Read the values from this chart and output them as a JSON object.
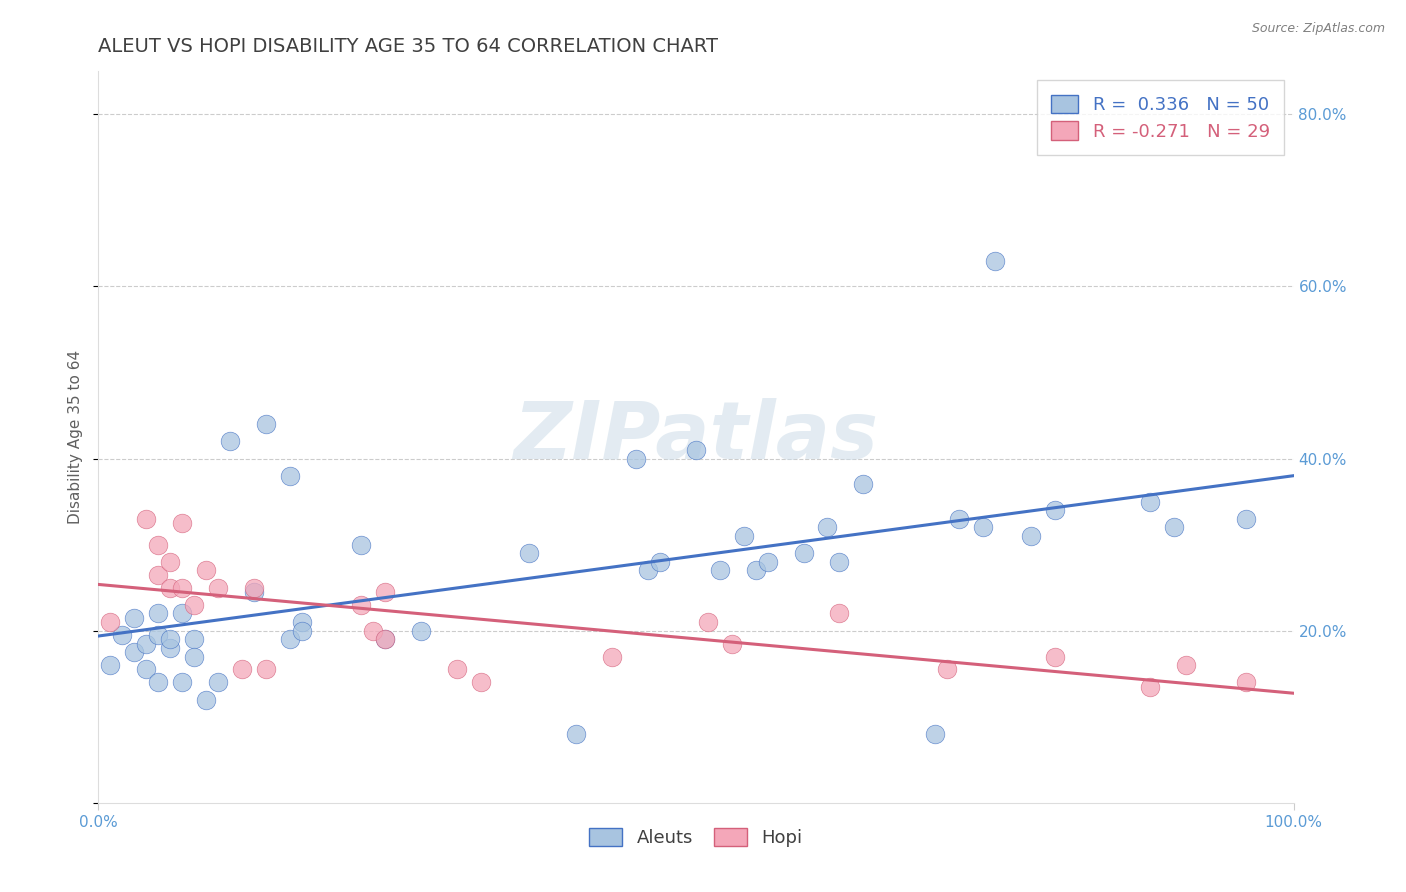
{
  "title": "ALEUT VS HOPI DISABILITY AGE 35 TO 64 CORRELATION CHART",
  "source": "Source: ZipAtlas.com",
  "ylabel": "Disability Age 35 to 64",
  "xlim": [
    0,
    1
  ],
  "ylim": [
    0,
    0.85
  ],
  "x_ticks": [
    0.0,
    1.0
  ],
  "x_tick_labels": [
    "0.0%",
    "100.0%"
  ],
  "y_ticks": [
    0.0,
    0.2,
    0.4,
    0.6,
    0.8
  ],
  "y_tick_labels_right": [
    "",
    "20.0%",
    "40.0%",
    "60.0%",
    "80.0%"
  ],
  "aleuts_R": 0.336,
  "aleuts_N": 50,
  "hopi_R": -0.271,
  "hopi_N": 29,
  "aleuts_color": "#a8c4e0",
  "aleuts_line_color": "#4472c4",
  "hopi_color": "#f4a7b9",
  "hopi_line_color": "#d4607a",
  "background_color": "#ffffff",
  "watermark_text": "ZIPatlas",
  "aleuts_x": [
    0.01,
    0.02,
    0.03,
    0.03,
    0.04,
    0.04,
    0.05,
    0.05,
    0.05,
    0.06,
    0.06,
    0.07,
    0.07,
    0.08,
    0.08,
    0.09,
    0.1,
    0.11,
    0.13,
    0.14,
    0.16,
    0.16,
    0.17,
    0.17,
    0.22,
    0.24,
    0.27,
    0.36,
    0.4,
    0.45,
    0.46,
    0.47,
    0.5,
    0.52,
    0.54,
    0.55,
    0.56,
    0.59,
    0.61,
    0.62,
    0.64,
    0.7,
    0.72,
    0.74,
    0.75,
    0.78,
    0.8,
    0.88,
    0.9,
    0.96
  ],
  "aleuts_y": [
    0.16,
    0.195,
    0.175,
    0.215,
    0.185,
    0.155,
    0.195,
    0.22,
    0.14,
    0.18,
    0.19,
    0.14,
    0.22,
    0.19,
    0.17,
    0.12,
    0.14,
    0.42,
    0.245,
    0.44,
    0.19,
    0.38,
    0.21,
    0.2,
    0.3,
    0.19,
    0.2,
    0.29,
    0.08,
    0.4,
    0.27,
    0.28,
    0.41,
    0.27,
    0.31,
    0.27,
    0.28,
    0.29,
    0.32,
    0.28,
    0.37,
    0.08,
    0.33,
    0.32,
    0.63,
    0.31,
    0.34,
    0.35,
    0.32,
    0.33
  ],
  "hopi_x": [
    0.01,
    0.04,
    0.05,
    0.05,
    0.06,
    0.06,
    0.07,
    0.07,
    0.08,
    0.09,
    0.1,
    0.12,
    0.13,
    0.14,
    0.22,
    0.23,
    0.24,
    0.24,
    0.3,
    0.32,
    0.43,
    0.51,
    0.53,
    0.62,
    0.71,
    0.8,
    0.88,
    0.91,
    0.96
  ],
  "hopi_y": [
    0.21,
    0.33,
    0.265,
    0.3,
    0.25,
    0.28,
    0.325,
    0.25,
    0.23,
    0.27,
    0.25,
    0.155,
    0.25,
    0.155,
    0.23,
    0.2,
    0.245,
    0.19,
    0.155,
    0.14,
    0.17,
    0.21,
    0.185,
    0.22,
    0.155,
    0.17,
    0.135,
    0.16,
    0.14
  ],
  "legend_box_color": "#ffffff",
  "legend_border_color": "#cccccc",
  "title_color": "#404040",
  "axis_label_color": "#606060",
  "tick_color": "#5b9bd5",
  "grid_color": "#cccccc",
  "title_fontsize": 14,
  "axis_label_fontsize": 11,
  "tick_fontsize": 11,
  "legend_fontsize": 13
}
